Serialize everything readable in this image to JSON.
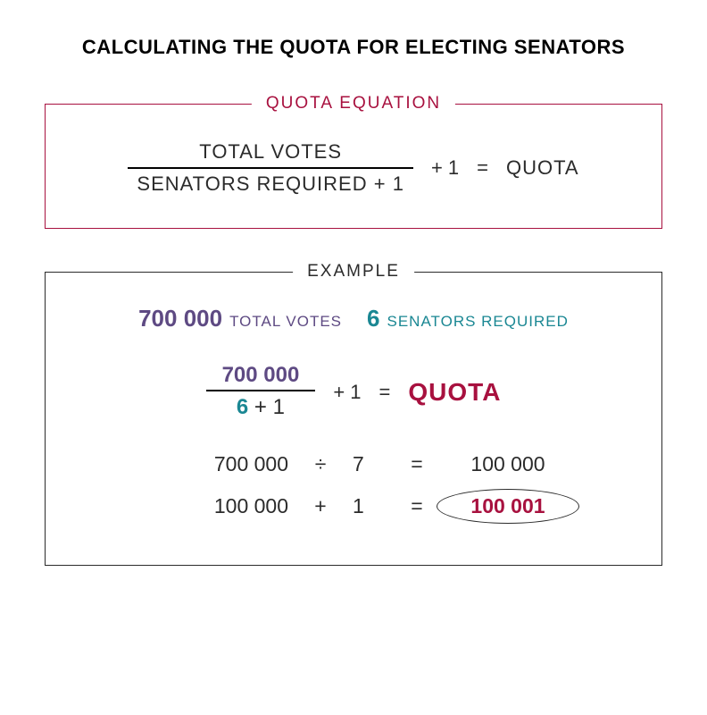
{
  "title": "CALCULATING THE QUOTA FOR ELECTING SENATORS",
  "colors": {
    "accent_magenta": "#a8113f",
    "accent_purple": "#5e4a83",
    "accent_teal": "#1a8793",
    "text_dark": "#2b2b2b",
    "background": "#ffffff"
  },
  "typography": {
    "title_fontsize": 22,
    "panel_label_fontsize": 19,
    "equation_fontsize": 22,
    "example_number_fontsize": 26,
    "example_label_fontsize": 17,
    "calc_fontsize": 23,
    "quota_word_fontsize": 28
  },
  "quota_panel": {
    "label": "QUOTA EQUATION",
    "border_color": "#a8113f",
    "label_color": "#a8113f",
    "fraction_top": "TOTAL VOTES",
    "fraction_bottom": "SENATORS REQUIRED + 1",
    "plus_one": "+ 1",
    "equals": "=",
    "result": "QUOTA"
  },
  "example_panel": {
    "label": "EXAMPLE",
    "border_color": "#2b2b2b",
    "label_color": "#2b2b2b",
    "header": {
      "votes_value": "700 000",
      "votes_label": "TOTAL VOTES",
      "senators_value": "6",
      "senators_label": "SENATORS REQUIRED"
    },
    "equation": {
      "fraction_top": "700 000",
      "fraction_six": "6",
      "fraction_plus_one": " + 1",
      "plus_one": "+ 1",
      "equals": "=",
      "result": "QUOTA"
    },
    "calculations": [
      {
        "left": "700 000",
        "op": "÷",
        "mid": "7",
        "eq": "=",
        "right": "100 000",
        "highlight": false
      },
      {
        "left": "100 000",
        "op": "+",
        "mid": "1",
        "eq": "=",
        "right": "100 001",
        "highlight": true
      }
    ]
  }
}
